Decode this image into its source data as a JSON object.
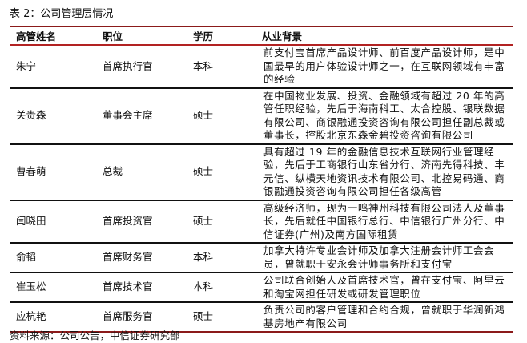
{
  "title": "表 2：公司管理层情况",
  "headers": [
    "高管姓名",
    "职位",
    "学历",
    "从业背景"
  ],
  "rows": [
    {
      "name": "朱宁",
      "position": "首席执行官",
      "education": "本科",
      "background": "前支付宝首席产品设计师、前百度产品设计师，是中国最早的用户体验设计师之一，在互联网领域有丰富的经验"
    },
    {
      "name": "关贵森",
      "position": "董事会主席",
      "education": "硕士",
      "background": "在中国物业发展、投资、金融领域有超过 20 年的高管任职经验，先后于海南科工、太合控股、银联数据有限公司、商银融通投资咨询有限公司担任副总裁或董事长，控股北京东森金碧投资咨询有限公司"
    },
    {
      "name": "曹春萌",
      "position": "总裁",
      "education": "硕士",
      "background": "具有超过 19 年的金融信息技术互联网行业管理经验，先后于工商银行山东省分行、济南先得科技、丰元信、纵横天地资讯技术有限公司、北控易码通、商银融通投资咨询有限公司担任各级高管"
    },
    {
      "name": "闫晓田",
      "position": "首席投资官",
      "education": "硕士",
      "background": "高级经济师，现为一鸣神州科技有限公司法人及董事长，先后就任中国银行总行、中信银行广州分行、中信证券(广州)及南方国际租赁"
    },
    {
      "name": "俞韬",
      "position": "首席财务官",
      "education": "本科",
      "background": "加拿大特许专业会计师及加拿大注册会计师工会会员，曾就职于安永会计师事务所和支付宝"
    },
    {
      "name": "崔玉松",
      "position": "首席技术官",
      "education": "本科",
      "background": "公司联合创始人及首席技术官，曾在支付宝、阿里云和淘宝网担任研发或研发管理职位"
    },
    {
      "name": "应杭艳",
      "position": "首席服务官",
      "education": "硕士",
      "background": "负责公司的客户管理和合约合规，曾就职于华润新鸿基房地产有限公司"
    }
  ],
  "source": "资料来源：公司公告，中信证券研究部"
}
